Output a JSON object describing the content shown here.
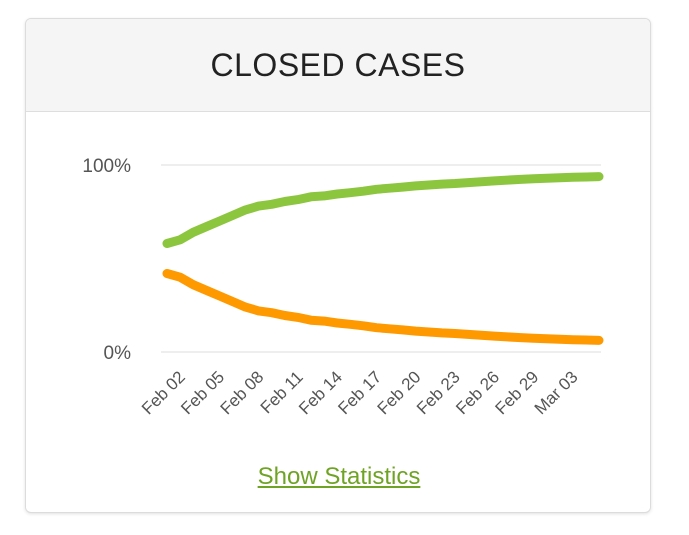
{
  "card": {
    "title": "CLOSED CASES",
    "link_label": "Show Statistics",
    "link_color": "#6fa323"
  },
  "chart_data": {
    "type": "line",
    "title": "CLOSED CASES",
    "xlabel": "",
    "ylabel": "",
    "ylim": [
      0,
      100
    ],
    "yticks": [
      "0%",
      "100%"
    ],
    "grid": true,
    "legend": "none",
    "x": [
      "Feb 01",
      "Feb 02",
      "Feb 03",
      "Feb 04",
      "Feb 05",
      "Feb 06",
      "Feb 07",
      "Feb 08",
      "Feb 09",
      "Feb 10",
      "Feb 11",
      "Feb 12",
      "Feb 13",
      "Feb 14",
      "Feb 15",
      "Feb 16",
      "Feb 17",
      "Feb 18",
      "Feb 19",
      "Feb 20",
      "Feb 21",
      "Feb 22",
      "Feb 23",
      "Feb 24",
      "Feb 25",
      "Feb 26",
      "Feb 27",
      "Feb 28",
      "Feb 29",
      "Mar 01",
      "Mar 02",
      "Mar 03",
      "Mar 04",
      "Mar 05"
    ],
    "xticks": [
      "Feb 02",
      "Feb 05",
      "Feb 08",
      "Feb 11",
      "Feb 14",
      "Feb 17",
      "Feb 20",
      "Feb 23",
      "Feb 26",
      "Feb 29",
      "Mar 03"
    ],
    "series": [
      {
        "color": "#8cc63f",
        "values": [
          58,
          60,
          64,
          67,
          70,
          73,
          76,
          78,
          79,
          80.5,
          81.5,
          83,
          83.5,
          84.5,
          85.2,
          86,
          87,
          87.6,
          88.2,
          88.8,
          89.3,
          89.8,
          90.1,
          90.6,
          91,
          91.5,
          91.9,
          92.3,
          92.6,
          92.9,
          93.2,
          93.4,
          93.6,
          93.8
        ]
      },
      {
        "color": "#ff9900",
        "values": [
          42,
          40,
          36,
          33,
          30,
          27,
          24,
          22,
          21,
          19.5,
          18.5,
          17,
          16.5,
          15.5,
          14.8,
          14,
          13,
          12.4,
          11.8,
          11.2,
          10.7,
          10.2,
          9.9,
          9.4,
          9,
          8.5,
          8.1,
          7.7,
          7.4,
          7.1,
          6.8,
          6.6,
          6.4,
          6.2
        ]
      }
    ]
  }
}
